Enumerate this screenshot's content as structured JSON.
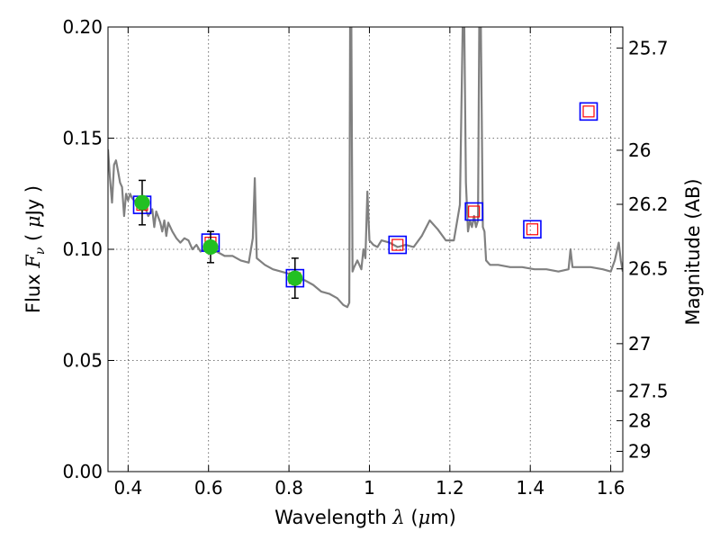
{
  "chart_data": {
    "type": "line",
    "xlabel": {
      "prefix": "Wavelength",
      "symbol": "λ",
      "unit_open": " (",
      "unit_mu": "μ",
      "unit_close": "m)"
    },
    "ylabel": {
      "prefix": "Flux",
      "symbol": "F",
      "sub": "ν",
      "unit_open": "( ",
      "unit_mu": "μ",
      "unit_close": "Jy )"
    },
    "y2label": "Magnitude (AB)",
    "xlim": [
      0.35,
      1.63
    ],
    "ylim": [
      0.0,
      0.2
    ],
    "x_ticks": [
      {
        "value": 0.4,
        "label": "0.4"
      },
      {
        "value": 0.6,
        "label": "0.6"
      },
      {
        "value": 0.8,
        "label": "0.8"
      },
      {
        "value": 1.0,
        "label": "1"
      },
      {
        "value": 1.2,
        "label": "1.2"
      },
      {
        "value": 1.4,
        "label": "1.4"
      },
      {
        "value": 1.6,
        "label": "1.6"
      }
    ],
    "y_ticks": [
      {
        "value": 0.0,
        "label": "0.00"
      },
      {
        "value": 0.05,
        "label": "0.05"
      },
      {
        "value": 0.1,
        "label": "0.10"
      },
      {
        "value": 0.15,
        "label": "0.15"
      },
      {
        "value": 0.2,
        "label": "0.20"
      }
    ],
    "y2_ticks": [
      {
        "value": 25.7,
        "label": "25.7"
      },
      {
        "value": 26.0,
        "label": "26"
      },
      {
        "value": 26.2,
        "label": "26.2"
      },
      {
        "value": 26.5,
        "label": "26.5"
      },
      {
        "value": 27.0,
        "label": "27"
      },
      {
        "value": 27.5,
        "label": "27.5"
      },
      {
        "value": 28.0,
        "label": "28"
      },
      {
        "value": 29.0,
        "label": "29"
      }
    ],
    "grid": true,
    "colors": {
      "spectrum": "#808080",
      "observed": "#22c022",
      "model_outline": "#0000ff",
      "model_inner": "#ff0000",
      "errorbar": "#000000"
    },
    "spectrum": {
      "x": [
        0.35,
        0.355,
        0.36,
        0.365,
        0.37,
        0.375,
        0.38,
        0.385,
        0.39,
        0.395,
        0.4,
        0.405,
        0.41,
        0.415,
        0.42,
        0.43,
        0.44,
        0.45,
        0.46,
        0.465,
        0.47,
        0.48,
        0.485,
        0.49,
        0.495,
        0.5,
        0.51,
        0.52,
        0.53,
        0.54,
        0.55,
        0.56,
        0.57,
        0.58,
        0.59,
        0.6,
        0.62,
        0.64,
        0.66,
        0.68,
        0.7,
        0.71,
        0.715,
        0.72,
        0.74,
        0.76,
        0.78,
        0.8,
        0.82,
        0.84,
        0.86,
        0.88,
        0.9,
        0.92,
        0.935,
        0.945,
        0.95,
        0.952,
        0.955,
        0.958,
        0.962,
        0.97,
        0.98,
        0.985,
        0.99,
        0.995,
        1.0,
        1.01,
        1.02,
        1.03,
        1.05,
        1.07,
        1.09,
        1.11,
        1.13,
        1.15,
        1.17,
        1.19,
        1.21,
        1.225,
        1.232,
        1.236,
        1.24,
        1.245,
        1.25,
        1.255,
        1.26,
        1.265,
        1.27,
        1.273,
        1.277,
        1.282,
        1.286,
        1.29,
        1.3,
        1.32,
        1.35,
        1.38,
        1.41,
        1.44,
        1.47,
        1.495,
        1.5,
        1.505,
        1.52,
        1.55,
        1.58,
        1.6,
        1.61,
        1.62,
        1.625,
        1.63
      ],
      "y": [
        0.145,
        0.132,
        0.121,
        0.138,
        0.14,
        0.135,
        0.13,
        0.128,
        0.115,
        0.125,
        0.122,
        0.125,
        0.123,
        0.122,
        0.121,
        0.123,
        0.12,
        0.115,
        0.118,
        0.11,
        0.117,
        0.112,
        0.108,
        0.113,
        0.106,
        0.112,
        0.108,
        0.105,
        0.103,
        0.105,
        0.104,
        0.1,
        0.102,
        0.099,
        0.1,
        0.098,
        0.099,
        0.097,
        0.097,
        0.095,
        0.094,
        0.105,
        0.132,
        0.096,
        0.093,
        0.091,
        0.09,
        0.089,
        0.087,
        0.086,
        0.084,
        0.081,
        0.08,
        0.078,
        0.075,
        0.074,
        0.076,
        0.2,
        0.2,
        0.09,
        0.092,
        0.095,
        0.091,
        0.1,
        0.096,
        0.126,
        0.104,
        0.102,
        0.101,
        0.104,
        0.103,
        0.101,
        0.102,
        0.101,
        0.106,
        0.113,
        0.109,
        0.104,
        0.104,
        0.12,
        0.2,
        0.2,
        0.13,
        0.108,
        0.113,
        0.11,
        0.115,
        0.11,
        0.113,
        0.2,
        0.2,
        0.11,
        0.108,
        0.095,
        0.093,
        0.093,
        0.092,
        0.092,
        0.091,
        0.091,
        0.09,
        0.091,
        0.1,
        0.092,
        0.092,
        0.092,
        0.091,
        0.09,
        0.095,
        0.103,
        0.095,
        0.09
      ]
    },
    "observed": [
      {
        "x": 0.435,
        "y": 0.121,
        "err": 0.01
      },
      {
        "x": 0.605,
        "y": 0.101,
        "err": 0.007
      },
      {
        "x": 0.815,
        "y": 0.087,
        "err": 0.009
      }
    ],
    "model_points": [
      {
        "x": 0.435,
        "y": 0.12
      },
      {
        "x": 0.605,
        "y": 0.103
      },
      {
        "x": 0.815,
        "y": 0.087
      },
      {
        "x": 1.07,
        "y": 0.102
      },
      {
        "x": 1.26,
        "y": 0.117
      },
      {
        "x": 1.405,
        "y": 0.109
      },
      {
        "x": 1.545,
        "y": 0.162
      }
    ]
  }
}
